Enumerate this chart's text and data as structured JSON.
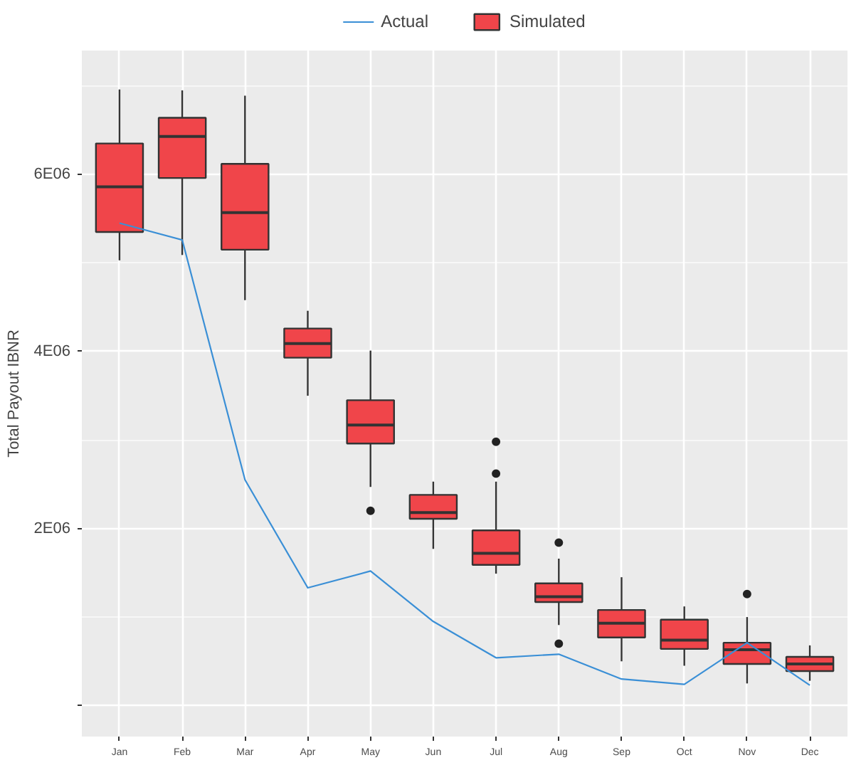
{
  "chart_data": {
    "type": "box",
    "ylabel": "Total Payout IBNR",
    "categories": [
      "Jan",
      "Feb",
      "Mar",
      "Apr",
      "May",
      "Jun",
      "Jul",
      "Aug",
      "Sep",
      "Oct",
      "Nov",
      "Dec"
    ],
    "ylim": [
      -350000,
      7400000
    ],
    "yticks": [
      {
        "value": 0,
        "label": null
      },
      {
        "value": 2000000,
        "label": "2E06"
      },
      {
        "value": 4000000,
        "label": "4E06"
      },
      {
        "value": 6000000,
        "label": "6E06"
      }
    ],
    "grid": true,
    "legend": "top",
    "series": [
      {
        "name": "Actual",
        "type": "line",
        "color": "#3a8fd6",
        "values": [
          5450000,
          5260000,
          2550000,
          1330000,
          1520000,
          950000,
          540000,
          580000,
          300000,
          240000,
          710000,
          230000
        ]
      },
      {
        "name": "Simulated",
        "color": "#f0454a",
        "boxes": [
          {
            "low": 5030000,
            "q1": 5350000,
            "median": 5860000,
            "q3": 6350000,
            "high": 6960000
          },
          {
            "low": 5090000,
            "q1": 5960000,
            "median": 6430000,
            "q3": 6640000,
            "high": 6950000
          },
          {
            "low": 4580000,
            "q1": 5150000,
            "median": 5570000,
            "q3": 6120000,
            "high": 6890000
          },
          {
            "low": 3500000,
            "q1": 3930000,
            "median": 4090000,
            "q3": 4260000,
            "high": 4460000
          },
          {
            "low": 2470000,
            "q1": 2960000,
            "median": 3170000,
            "q3": 3450000,
            "high": 4010000,
            "outliers": [
              2200000
            ]
          },
          {
            "low": 1770000,
            "q1": 2110000,
            "median": 2180000,
            "q3": 2380000,
            "high": 2530000
          },
          {
            "low": 1490000,
            "q1": 1590000,
            "median": 1720000,
            "q3": 1980000,
            "high": 2530000,
            "outliers": [
              2980000,
              2620000
            ]
          },
          {
            "low": 910000,
            "q1": 1170000,
            "median": 1230000,
            "q3": 1380000,
            "high": 1660000,
            "outliers": [
              1840000,
              700000
            ]
          },
          {
            "low": 500000,
            "q1": 770000,
            "median": 930000,
            "q3": 1080000,
            "high": 1450000
          },
          {
            "low": 450000,
            "q1": 640000,
            "median": 740000,
            "q3": 970000,
            "high": 1120000
          },
          {
            "low": 250000,
            "q1": 470000,
            "median": 630000,
            "q3": 710000,
            "high": 1000000,
            "outliers": [
              1260000
            ]
          },
          {
            "low": 280000,
            "q1": 390000,
            "median": 470000,
            "q3": 550000,
            "high": 680000
          }
        ]
      }
    ]
  }
}
